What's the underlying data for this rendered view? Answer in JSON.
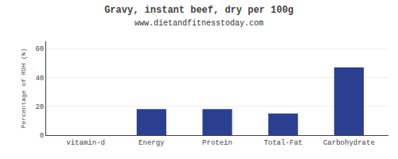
{
  "chart_data": {
    "type": "bar",
    "title": "Gravy, instant beef, dry per 100g",
    "subtitle": "www.dietandfitnesstoday.com",
    "categories": [
      "vitamin-d",
      "Energy",
      "Protein",
      "Total-Fat",
      "Carbohydrate"
    ],
    "values": [
      0,
      18,
      18,
      15,
      47
    ],
    "color": "#2a3f8f",
    "ylim": [
      0,
      65
    ],
    "yticks": [
      0,
      20,
      40,
      60
    ],
    "ylabel": "Percentage of RDH (%)",
    "grid": true
  }
}
